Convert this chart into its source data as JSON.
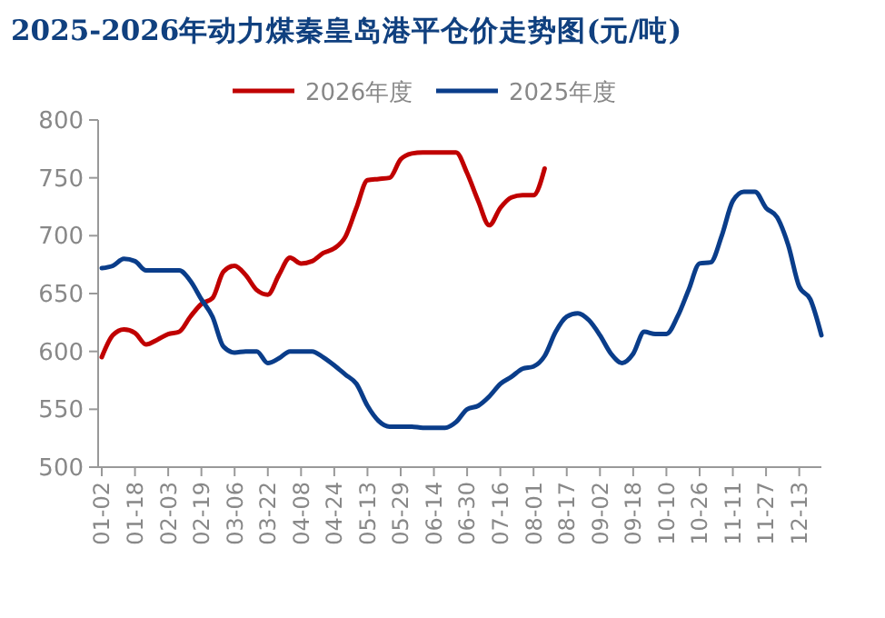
{
  "chart_data": {
    "type": "line",
    "title": "2025-2026年动力煤秦皇岛港平仓价走势图(元/吨)",
    "categories": [
      "01-02",
      null,
      null,
      "01-18",
      null,
      null,
      "02-03",
      null,
      null,
      "02-19",
      null,
      null,
      "03-06",
      null,
      null,
      "03-22",
      null,
      null,
      "04-08",
      null,
      null,
      "04-24",
      null,
      null,
      "05-13",
      null,
      null,
      "05-29",
      null,
      null,
      "06-14",
      null,
      null,
      "06-30",
      null,
      null,
      "07-16",
      null,
      null,
      "08-01",
      null,
      null,
      "08-17",
      null,
      null,
      "09-02",
      null,
      null,
      "09-18",
      null,
      null,
      "10-10",
      null,
      null,
      "10-26",
      null,
      null,
      "11-11",
      null,
      null,
      "11-27",
      null,
      null,
      "12-13",
      null,
      null
    ],
    "series": [
      {
        "name": "2026年度",
        "color": "#c00000",
        "values": [
          595,
          614,
          619,
          616,
          606,
          610,
          615,
          617,
          630,
          641,
          646,
          669,
          674,
          666,
          653,
          649,
          666,
          681,
          676,
          678,
          685,
          689,
          699,
          724,
          748,
          749,
          750,
          766,
          771,
          772,
          772,
          772,
          772,
          754,
          730,
          709,
          724,
          733,
          735,
          735,
          758,
          null,
          null,
          null,
          null,
          null,
          null,
          null,
          null,
          null,
          null,
          null,
          null,
          null,
          null,
          null,
          null,
          null,
          null,
          null,
          null,
          null,
          null,
          null,
          null,
          null
        ]
      },
      {
        "name": "2025年度",
        "color": "#0a3d8a",
        "values": [
          672,
          674,
          680,
          678,
          670,
          670,
          670,
          670,
          661,
          645,
          630,
          604,
          599,
          600,
          600,
          590,
          594,
          600,
          600,
          600,
          595,
          588,
          580,
          572,
          553,
          540,
          535,
          535,
          535,
          534,
          534,
          534,
          539,
          550,
          553,
          561,
          572,
          578,
          585,
          587,
          596,
          617,
          630,
          633,
          627,
          614,
          598,
          590,
          598,
          617,
          615,
          615,
          630,
          653,
          676,
          677,
          700,
          730,
          738,
          738,
          724,
          716,
          692,
          656,
          645,
          614
        ]
      }
    ],
    "ylim": [
      500,
      800
    ],
    "yticks": [
      500,
      550,
      600,
      650,
      700,
      750,
      800
    ],
    "grid": false,
    "legend": "top",
    "marker": "none",
    "line_style": "solid"
  }
}
